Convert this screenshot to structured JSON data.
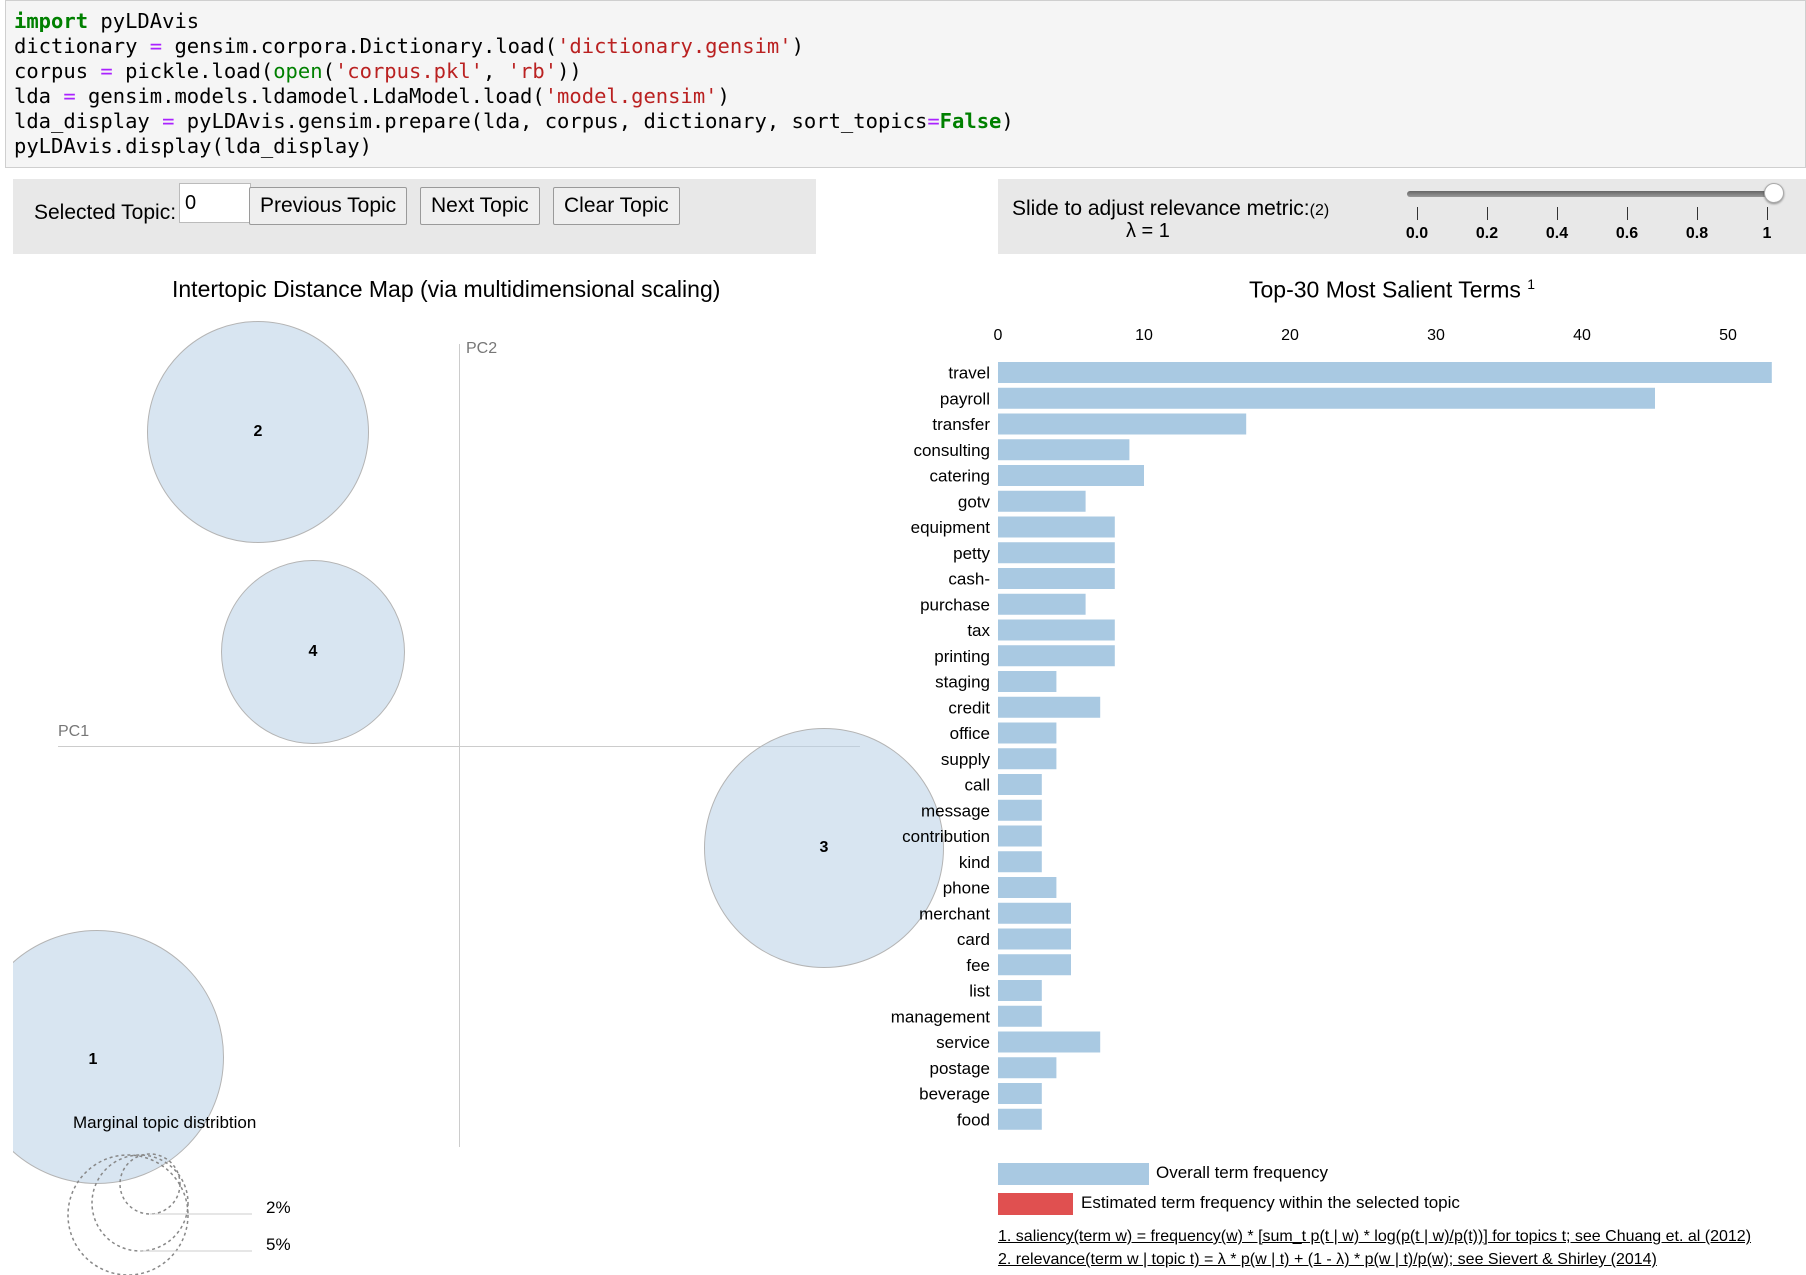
{
  "code": {
    "line1_kw": "import",
    "line1_rest": " pyLDAvis",
    "line2_a": "dictionary ",
    "line2_op": "=",
    "line2_b": " gensim.corpora.Dictionary.load(",
    "line2_str": "'dictionary.gensim'",
    "line2_c": ")",
    "line3_a": "corpus ",
    "line3_op": "=",
    "line3_b": " pickle.load(",
    "line3_bi": "open",
    "line3_c": "(",
    "line3_str1": "'corpus.pkl'",
    "line3_d": ", ",
    "line3_str2": "'rb'",
    "line3_e": "))",
    "line4_a": "lda ",
    "line4_op": "=",
    "line4_b": " gensim.models.ldamodel.LdaModel.load(",
    "line4_str": "'model.gensim'",
    "line4_c": ")",
    "line5_a": "lda_display ",
    "line5_op": "=",
    "line5_b": " pyLDAvis.gensim.prepare(lda, corpus, dictionary, sort_topics",
    "line5_op2": "=",
    "line5_kw": "False",
    "line5_c": ")",
    "line6": "pyLDAvis.display(lda_display)"
  },
  "controls": {
    "selected_topic_label": "Selected Topic:",
    "selected_topic_value": "0",
    "prev_button": "Previous Topic",
    "next_button": "Next Topic",
    "clear_button": "Clear Topic",
    "relevance_label": "Slide to adjust relevance metric:",
    "relevance_note": "(2)",
    "lambda_text": "λ = 1",
    "slider_value": 1,
    "slider_ticks": [
      "0.0",
      "0.2",
      "0.4",
      "0.6",
      "0.8",
      "1"
    ]
  },
  "intertopic": {
    "title": "Intertopic Distance Map (via multidimensional scaling)",
    "pc1": "PC1",
    "pc2": "PC2",
    "topics": [
      "1",
      "2",
      "3",
      "4"
    ],
    "marginal_title": "Marginal topic distribtion",
    "marginal_pcts": [
      "2%",
      "5%"
    ]
  },
  "salient": {
    "title": "Top-30 Most Salient Terms",
    "title_sup": "1",
    "legend_overall": "Overall term frequency",
    "legend_estimated": "Estimated term frequency within the selected topic",
    "footnote1": "1. saliency(term w) = frequency(w) * [sum_t p(t | w) * log(p(t | w)/p(t))] for topics t; see Chuang et. al (2012)",
    "footnote2": "2. relevance(term w | topic t) = λ * p(w | t) + (1 - λ) * p(w | t)/p(w); see Sievert & Shirley (2014)",
    "overall_color": "#a9c9e2",
    "estimated_color": "#e05050"
  },
  "chart_data": {
    "type": "bar",
    "title": "Top-30 Most Salient Terms",
    "categories": [
      "travel",
      "payroll",
      "transfer",
      "consulting",
      "catering",
      "gotv",
      "equipment",
      "petty",
      "cash-",
      "purchase",
      "tax",
      "printing",
      "staging",
      "credit",
      "office",
      "supply",
      "call",
      "message",
      "contribution",
      "kind",
      "phone",
      "merchant",
      "card",
      "fee",
      "list",
      "management",
      "service",
      "postage",
      "beverage",
      "food"
    ],
    "values": [
      53,
      45,
      17,
      9,
      10,
      6,
      8,
      8,
      8,
      6,
      8,
      8,
      4,
      7,
      4,
      4,
      3,
      3,
      3,
      3,
      4,
      5,
      5,
      5,
      3,
      3,
      7,
      4,
      3,
      3
    ],
    "xticks": [
      0,
      10,
      20,
      30,
      40,
      50
    ],
    "xlim": [
      0,
      53
    ],
    "series": [
      {
        "name": "Overall term frequency",
        "values": [
          53,
          45,
          17,
          9,
          10,
          6,
          8,
          8,
          8,
          6,
          8,
          8,
          4,
          7,
          4,
          4,
          3,
          3,
          3,
          3,
          4,
          5,
          5,
          5,
          3,
          3,
          7,
          4,
          3,
          3
        ]
      }
    ]
  }
}
